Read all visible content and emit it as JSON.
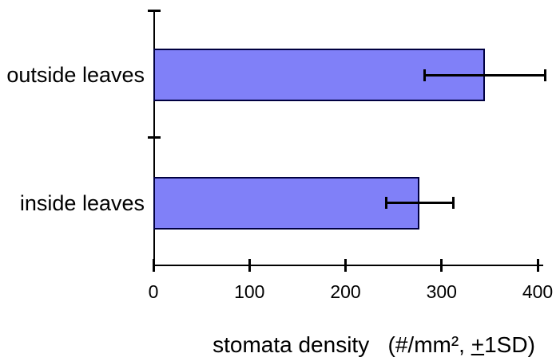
{
  "chart_data": {
    "type": "bar",
    "orientation": "horizontal",
    "title": "",
    "categories": [
      "outside leaves",
      "inside leaves"
    ],
    "values": [
      345,
      277
    ],
    "errors_1sd": [
      63,
      35
    ],
    "error_ranges": [
      [
        282,
        408
      ],
      [
        242,
        312
      ]
    ],
    "xlabel": "stomata density   (#/mm², ±1SD)",
    "xlabel_parts": {
      "pre": "stomata density   (#/mm², ",
      "plus": "+",
      "post": "1SD)"
    },
    "xlim": [
      0,
      400
    ],
    "xticks": [
      "0",
      "100",
      "200",
      "300",
      "400"
    ],
    "xtick_values": [
      0,
      100,
      200,
      300,
      400
    ],
    "grid": false,
    "legend": "none",
    "colors": {
      "bar_fill": "#8080F8",
      "bar_border": "#000040",
      "axis": "#000000",
      "error_bar": "#000000",
      "background": "#FFFFFF",
      "text": "#000000"
    }
  }
}
